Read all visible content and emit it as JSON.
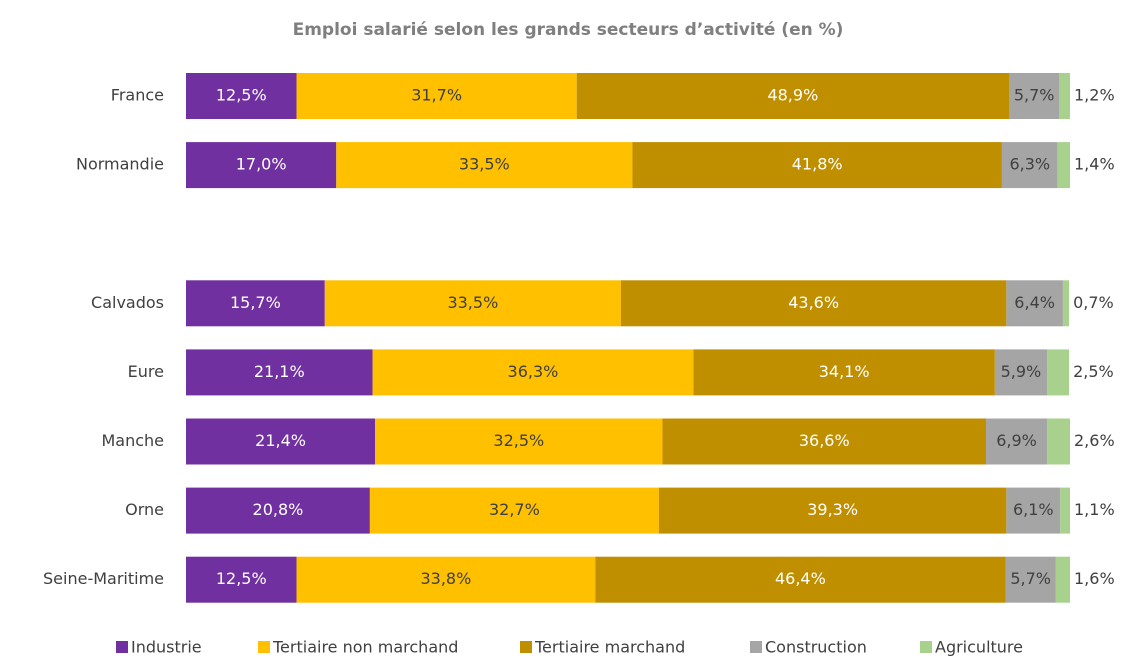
{
  "chart_data": {
    "type": "stacked-bar-horizontal",
    "title": "Emploi salarié selon les grands secteurs d’activité (en %)",
    "categories": [
      "France",
      "Normandie",
      null,
      "Calvados",
      "Eure",
      "Manche",
      "Orne",
      "Seine-Maritime"
    ],
    "xlim": [
      0,
      100
    ],
    "legend": "bottom",
    "series": [
      {
        "name": "Industrie",
        "color": "#7030a0",
        "values": [
          12.5,
          17.0,
          null,
          15.7,
          21.1,
          21.4,
          20.8,
          12.5
        ],
        "value_labels": [
          "12,5%",
          "17,0%",
          null,
          "15,7%",
          "21,1%",
          "21,4%",
          "20,8%",
          "12,5%"
        ]
      },
      {
        "name": "Tertiaire non marchand",
        "color": "#ffc000",
        "values": [
          31.7,
          33.5,
          null,
          33.5,
          36.3,
          32.5,
          32.7,
          33.8
        ],
        "value_labels": [
          "31,7%",
          "33,5%",
          null,
          "33,5%",
          "36,3%",
          "32,5%",
          "32,7%",
          "33,8%"
        ]
      },
      {
        "name": "Tertiaire marchand",
        "color": "#bf8f00",
        "values": [
          48.9,
          41.8,
          null,
          43.6,
          34.1,
          36.6,
          39.3,
          46.4
        ],
        "value_labels": [
          "48,9%",
          "41,8%",
          null,
          "43,6%",
          "34,1%",
          "36,6%",
          "39,3%",
          "46,4%"
        ]
      },
      {
        "name": "Construction",
        "color": "#a5a5a5",
        "values": [
          5.7,
          6.3,
          null,
          6.4,
          5.9,
          6.9,
          6.1,
          5.7
        ],
        "value_labels": [
          "5,7%",
          "6,3%",
          null,
          "6,4%",
          "5,9%",
          "6,9%",
          "6,1%",
          "5,7%"
        ]
      },
      {
        "name": "Agriculture",
        "color": "#a9d18e",
        "values": [
          1.2,
          1.4,
          null,
          0.7,
          2.5,
          2.6,
          1.1,
          1.6
        ],
        "value_labels": [
          "1,2%",
          "1,4%",
          null,
          "0,7%",
          "2,5%",
          "2,6%",
          "1,1%",
          "1,6%"
        ]
      }
    ]
  }
}
